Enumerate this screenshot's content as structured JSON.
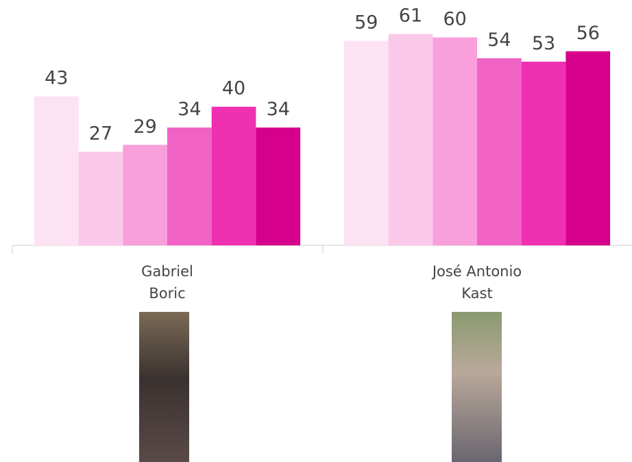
{
  "chart_data": {
    "type": "bar",
    "categories": [
      "Gabriel\nBoric",
      "José Antonio\nKast"
    ],
    "series": [
      {
        "color": "#fde2f3",
        "values": [
          43,
          59
        ]
      },
      {
        "color": "#fac9e9",
        "values": [
          27,
          61
        ]
      },
      {
        "color": "#f99fdc",
        "values": [
          29,
          60
        ]
      },
      {
        "color": "#f063c5",
        "values": [
          34,
          54
        ]
      },
      {
        "color": "#ef30b1",
        "values": [
          40,
          53
        ]
      },
      {
        "color": "#d5008b",
        "values": [
          34,
          56
        ]
      }
    ],
    "ylim": [
      0,
      70
    ]
  }
}
